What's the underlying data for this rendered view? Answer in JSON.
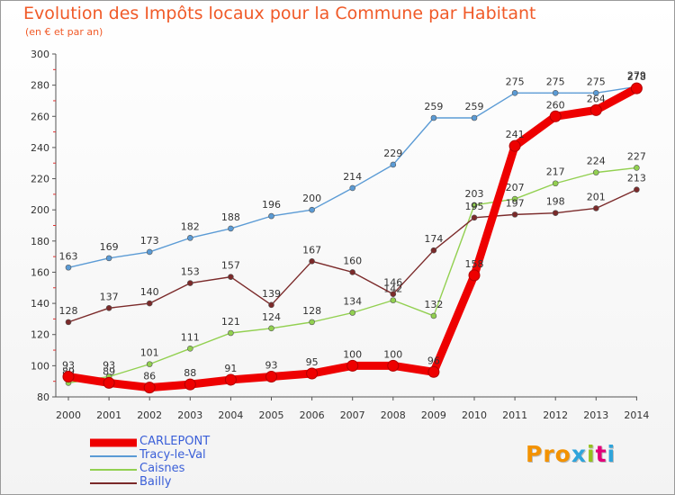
{
  "title": "Evolution des Impôts locaux pour la Commune par Habitant",
  "subtitle": "(en € et par an)",
  "logo": {
    "text": "Proxiti",
    "colors": [
      "#f39200",
      "#f39200",
      "#f39200",
      "#2fa4db",
      "#95c11f",
      "#e2007a",
      "#2fa4db"
    ]
  },
  "chart_data": {
    "type": "line",
    "x": [
      2000,
      2001,
      2002,
      2003,
      2004,
      2005,
      2006,
      2007,
      2008,
      2009,
      2010,
      2011,
      2012,
      2013,
      2014
    ],
    "ylim": [
      80,
      300
    ],
    "yticks": [
      80,
      100,
      120,
      140,
      160,
      180,
      200,
      220,
      240,
      260,
      280,
      300
    ],
    "grid": false,
    "legend_position": "bottom-left",
    "series": [
      {
        "name": "Tracy-le-Val",
        "color": "#5b9bd5",
        "values": [
          163,
          169,
          173,
          182,
          188,
          196,
          200,
          214,
          229,
          259,
          259,
          275,
          275,
          275,
          279
        ]
      },
      {
        "name": "Caisnes",
        "color": "#92d050",
        "values": [
          89,
          93,
          101,
          111,
          121,
          124,
          128,
          134,
          142,
          132,
          203,
          207,
          217,
          224,
          227
        ]
      },
      {
        "name": "Bailly",
        "color": "#7b2a2a",
        "values": [
          128,
          137,
          140,
          153,
          157,
          139,
          167,
          160,
          146,
          174,
          195,
          197,
          198,
          201,
          213
        ]
      },
      {
        "name": "CARLEPONT",
        "color": "#ee0000",
        "values": [
          93,
          89,
          86,
          88,
          91,
          93,
          95,
          100,
          100,
          96,
          158,
          241,
          260,
          264,
          278
        ]
      }
    ]
  }
}
